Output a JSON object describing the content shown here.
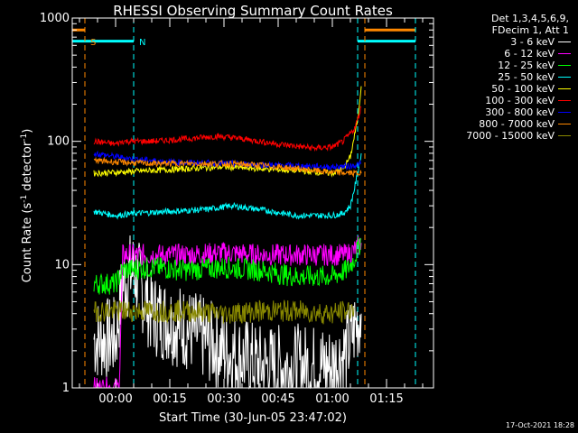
{
  "chart_data": {
    "type": "line",
    "title": "RHESSI Observing Summary Count Rates",
    "xlabel": "Start Time (30-Jun-05 23:47:02)",
    "ylabel_parts": [
      "Count Rate (s",
      "-1",
      " detector",
      "-1",
      ")"
    ],
    "yscale": "log",
    "ylim": [
      1,
      1000
    ],
    "y_ticks": [
      {
        "value": 1,
        "label": "1"
      },
      {
        "value": 10,
        "label": "10"
      },
      {
        "value": 100,
        "label": "100"
      },
      {
        "value": 1000,
        "label": "1000"
      }
    ],
    "x_range_min": [
      -9.5,
      43.5
    ],
    "x_ticks": [
      {
        "value": 0,
        "label": "00:00"
      },
      {
        "value": 15,
        "label": "00:15"
      },
      {
        "value": 30,
        "label": "00:30"
      },
      {
        "value": 45,
        "label": "00:45"
      },
      {
        "value": 60,
        "label": "01:00"
      },
      {
        "value": 75,
        "label": "01:15"
      }
    ],
    "markers": [
      {
        "name": "saa-start",
        "x": -8.5,
        "color": "#ff8800",
        "label": "S"
      },
      {
        "name": "night-start",
        "x": 5.0,
        "color": "#00ffff",
        "label": "N"
      },
      {
        "name": "night-end",
        "x": 67.0,
        "color": "#00ffff",
        "label": ""
      },
      {
        "name": "saa-end",
        "x": 69.0,
        "color": "#ff8800",
        "label": ""
      },
      {
        "name": "night-2",
        "x": 83.0,
        "color": "#00ffff",
        "label": ""
      }
    ],
    "flag_bars": [
      {
        "name": "saa-flag",
        "x": [
          -12,
          -8.5
        ],
        "y": 800,
        "color": "#ff8800"
      },
      {
        "name": "saa-flag-2",
        "x": [
          69,
          83
        ],
        "y": 800,
        "color": "#ff8800"
      },
      {
        "name": "night-flag",
        "x": [
          -12,
          5
        ],
        "y": 650,
        "color": "#00ffff"
      },
      {
        "name": "night-flag-2",
        "x": [
          67,
          83
        ],
        "y": 650,
        "color": "#00ffff"
      }
    ],
    "series": [
      {
        "name": "3 - 6 keV",
        "color": "#ffffff",
        "x": [
          -6,
          0,
          2,
          5,
          10,
          20,
          30,
          40,
          50,
          60,
          64,
          66,
          68
        ],
        "y": [
          2.5,
          2.5,
          7,
          9,
          4,
          3,
          2,
          1.5,
          1.5,
          1.5,
          2,
          3,
          4
        ]
      },
      {
        "name": "6 - 12 keV",
        "color": "#ff00ff",
        "x": [
          -6,
          1,
          2,
          10,
          20,
          30,
          40,
          50,
          60,
          64,
          66,
          68
        ],
        "y": [
          1,
          1,
          12,
          12,
          12,
          12.5,
          12,
          12,
          12,
          12,
          13,
          15
        ]
      },
      {
        "name": "12 - 25 keV",
        "color": "#00ff00",
        "x": [
          -6,
          0,
          2,
          10,
          20,
          30,
          40,
          50,
          60,
          64,
          66,
          68
        ],
        "y": [
          7,
          7,
          9,
          9.5,
          9,
          9.5,
          9,
          8,
          8,
          9,
          11,
          16
        ]
      },
      {
        "name": "25 - 50 keV",
        "color": "#00ffff",
        "x": [
          -6,
          0,
          5,
          15,
          25,
          32,
          40,
          50,
          60,
          63,
          65,
          66,
          67,
          68
        ],
        "y": [
          27,
          25,
          26,
          27,
          28,
          30,
          28,
          25,
          25,
          26,
          30,
          40,
          55,
          80
        ]
      },
      {
        "name": "50 - 100 keV",
        "color": "#ffff00",
        "x": [
          -6,
          0,
          10,
          20,
          30,
          40,
          50,
          60,
          63,
          65,
          67,
          68
        ],
        "y": [
          55,
          56,
          58,
          60,
          62,
          60,
          58,
          55,
          60,
          75,
          150,
          280
        ]
      },
      {
        "name": "100 - 300 keV",
        "color": "#ff0000",
        "x": [
          -6,
          0,
          2,
          10,
          20,
          28,
          35,
          45,
          55,
          60,
          63,
          66,
          67,
          68
        ],
        "y": [
          100,
          95,
          100,
          100,
          105,
          110,
          105,
          95,
          88,
          90,
          100,
          125,
          150,
          190
        ]
      },
      {
        "name": "300 - 800 keV",
        "color": "#0000ff",
        "x": [
          -6,
          0,
          5,
          15,
          30,
          45,
          60,
          65,
          68
        ],
        "y": [
          80,
          75,
          72,
          68,
          66,
          64,
          62,
          63,
          66
        ]
      },
      {
        "name": "800 - 7000 keV",
        "color": "#ff8800",
        "x": [
          -6,
          0,
          10,
          20,
          30,
          40,
          50,
          60,
          68
        ],
        "y": [
          70,
          68,
          66,
          66,
          66,
          64,
          60,
          56,
          55
        ]
      },
      {
        "name": "7000 - 15000 keV",
        "color": "#888800",
        "x": [
          -6,
          0,
          10,
          20,
          30,
          40,
          50,
          60,
          64,
          66
        ],
        "y": [
          4.2,
          4.2,
          4.2,
          4.2,
          4.0,
          4.2,
          4.2,
          4.0,
          4.2,
          4.5
        ]
      }
    ]
  },
  "legend": {
    "header_line1": "Det 1,3,4,5,6,9,",
    "header_line2": "FDecim 1, Att 1",
    "items": [
      {
        "label": "3 - 6 keV",
        "color": "#ffffff"
      },
      {
        "label": "6 - 12 keV",
        "color": "#ff00ff"
      },
      {
        "label": "12 - 25 keV",
        "color": "#00ff00"
      },
      {
        "label": "25 - 50 keV",
        "color": "#00ffff"
      },
      {
        "label": "50 - 100 keV",
        "color": "#ffff00"
      },
      {
        "label": "100 - 300 keV",
        "color": "#ff0000"
      },
      {
        "label": "300 - 800 keV",
        "color": "#0000ff"
      },
      {
        "label": "800 - 7000 keV",
        "color": "#ff8800"
      },
      {
        "label": "7000 - 15000 keV",
        "color": "#888800"
      }
    ]
  },
  "timestamp": "17-Oct-2021 18:28"
}
